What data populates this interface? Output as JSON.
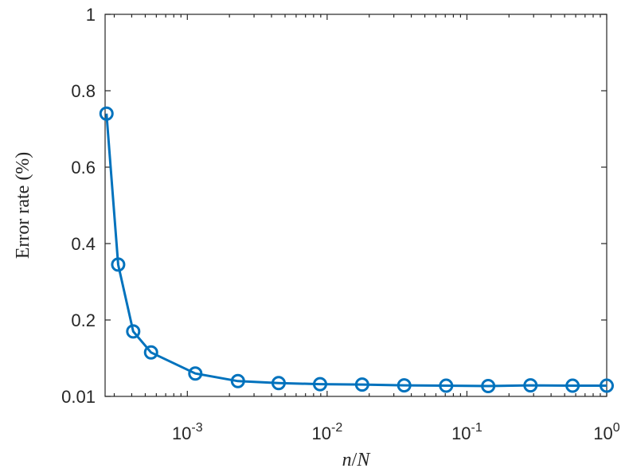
{
  "chart_data": {
    "type": "line",
    "xlabel_parts": [
      "n",
      "/",
      "N"
    ],
    "ylabel": "Error rate (%)",
    "x_scale": "log",
    "xlim": [
      0.000258,
      1.0
    ],
    "ylim": [
      0.0,
      1.0
    ],
    "y_bottom_label": "0.01",
    "x_ticks": [
      {
        "value": 0.001,
        "base": "10",
        "exp": "-3"
      },
      {
        "value": 0.01,
        "base": "10",
        "exp": "-2"
      },
      {
        "value": 0.1,
        "base": "10",
        "exp": "-1"
      },
      {
        "value": 1.0,
        "base": "10",
        "exp": "0"
      }
    ],
    "y_ticks": [
      {
        "value": 0.01,
        "label": "0.01"
      },
      {
        "value": 0.2,
        "label": "0.2"
      },
      {
        "value": 0.4,
        "label": "0.4"
      },
      {
        "value": 0.6,
        "label": "0.6"
      },
      {
        "value": 0.8,
        "label": "0.8"
      },
      {
        "value": 1.0,
        "label": "1"
      }
    ],
    "grid": false,
    "marker": "circle",
    "color": "#0072BD",
    "series": [
      {
        "x": [
          0.000264,
          0.00032,
          0.00041,
          0.00055,
          0.00114,
          0.0023,
          0.0045,
          0.0089,
          0.0178,
          0.0356,
          0.071,
          0.142,
          0.285,
          0.57,
          1.0
        ],
        "values": [
          0.74,
          0.345,
          0.17,
          0.115,
          0.06,
          0.04,
          0.035,
          0.032,
          0.031,
          0.029,
          0.028,
          0.027,
          0.029,
          0.028,
          0.028
        ]
      }
    ]
  }
}
